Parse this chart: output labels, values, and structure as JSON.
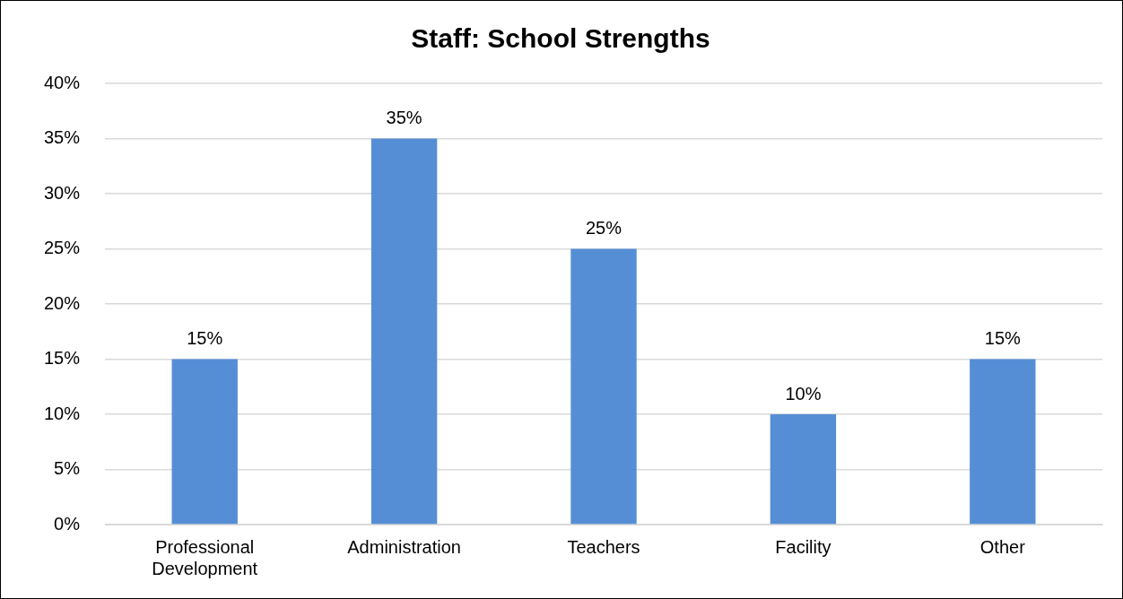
{
  "chart_data": {
    "type": "bar",
    "title": "Staff: School Strengths",
    "categories": [
      "Professional Development",
      "Administration",
      "Teachers",
      "Facility",
      "Other"
    ],
    "values": [
      15,
      35,
      25,
      10,
      15
    ],
    "color": "#558ed5",
    "value_labels": [
      "15%",
      "35%",
      "25%",
      "10%",
      "15%"
    ],
    "ylim": [
      0,
      40
    ],
    "yticks": [
      {
        "value": 0,
        "label": "0%"
      },
      {
        "value": 5,
        "label": "5%"
      },
      {
        "value": 10,
        "label": "10%"
      },
      {
        "value": 15,
        "label": "15%"
      },
      {
        "value": 20,
        "label": "20%"
      },
      {
        "value": 25,
        "label": "25%"
      },
      {
        "value": 30,
        "label": "30%"
      },
      {
        "value": 35,
        "label": "35%"
      },
      {
        "value": 40,
        "label": "40%"
      }
    ],
    "grid": "y",
    "legend": false
  }
}
